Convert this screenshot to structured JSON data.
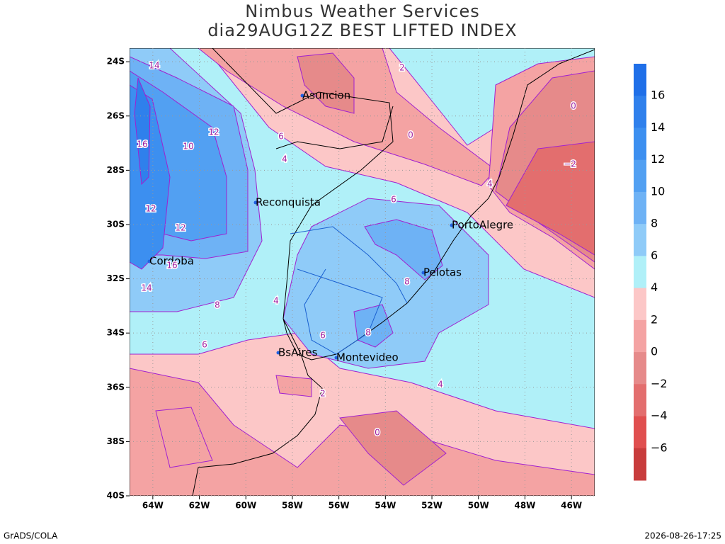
{
  "header": {
    "title": "Nimbus Weather Services",
    "subtitle": "dia29AUG12Z BEST LIFTED INDEX"
  },
  "map": {
    "lon_range": [
      -65,
      -45
    ],
    "lat_range": [
      -40,
      -23.5
    ],
    "lat_ticks": [
      {
        "value": -24,
        "label": "24S"
      },
      {
        "value": -26,
        "label": "26S"
      },
      {
        "value": -28,
        "label": "28S"
      },
      {
        "value": -30,
        "label": "30S"
      },
      {
        "value": -32,
        "label": "32S"
      },
      {
        "value": -34,
        "label": "34S"
      },
      {
        "value": -36,
        "label": "36S"
      },
      {
        "value": -38,
        "label": "38S"
      },
      {
        "value": -40,
        "label": "40S"
      }
    ],
    "lon_ticks": [
      {
        "value": -64,
        "label": "64W"
      },
      {
        "value": -62,
        "label": "62W"
      },
      {
        "value": -60,
        "label": "60W"
      },
      {
        "value": -58,
        "label": "58W"
      },
      {
        "value": -56,
        "label": "56W"
      },
      {
        "value": -54,
        "label": "54W"
      },
      {
        "value": -52,
        "label": "52W"
      },
      {
        "value": -50,
        "label": "50W"
      },
      {
        "value": -48,
        "label": "48W"
      },
      {
        "value": -46,
        "label": "46W"
      }
    ],
    "cities": [
      "Asuncion",
      "Reconquista",
      "PortoAlegre",
      "Cordoba",
      "Pelotas",
      "BsAires",
      "Montevideo"
    ],
    "contour_labels": [
      14,
      16,
      12,
      10,
      12,
      12,
      16,
      14,
      6,
      4,
      2,
      0,
      0,
      {
        "value": -2,
        "label": "−2"
      },
      4,
      6,
      8,
      8,
      4,
      6,
      6,
      8,
      2,
      4,
      0
    ]
  },
  "colorbar": {
    "colors": [
      "#1f6fe8",
      "#2f80ec",
      "#3c8ff0",
      "#52a0f2",
      "#6eb2f5",
      "#8fcbf8",
      "#b0f0f8",
      "#fcc7c7",
      "#f4a3a3",
      "#e68a8a",
      "#e36e6e",
      "#e04f4f",
      "#c83c3c"
    ],
    "levels": [
      16,
      14,
      12,
      10,
      8,
      6,
      4,
      2,
      0,
      {
        "value": -2,
        "label": "−2"
      },
      {
        "value": -4,
        "label": "−4"
      },
      {
        "value": -6,
        "label": "−6"
      }
    ]
  },
  "footer": {
    "left": "GrADS/COLA",
    "right": "2026-08-26-17:25"
  }
}
